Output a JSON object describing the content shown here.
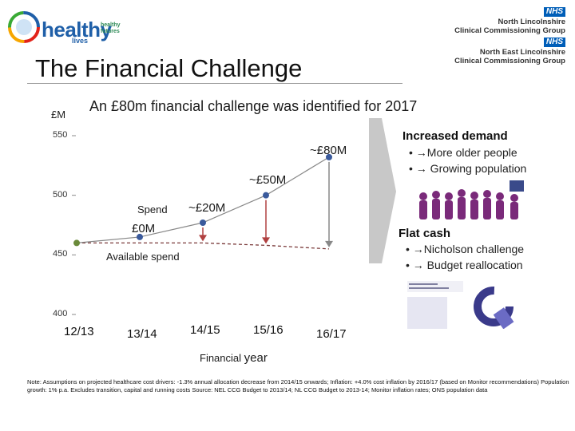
{
  "logo": {
    "name": "healthy",
    "tagline": [
      "healthy",
      "futures"
    ],
    "sub": "lives"
  },
  "nhs": [
    {
      "badge": "NHS",
      "org": [
        "North Lincolnshire",
        "Clinical Commissioning Group"
      ]
    },
    {
      "badge": "NHS",
      "org": [
        "North East Lincolnshire",
        "Clinical Commissioning Group"
      ]
    }
  ],
  "title": "The Financial Challenge",
  "subtitle": "An £80m financial challenge was identified for 2017",
  "chart_data": {
    "type": "line",
    "title": "An £80m financial challenge was identified for 2017",
    "ylabel": "£M",
    "xlabel": "Financial year",
    "ylim": [
      400,
      550
    ],
    "yticks": [
      400,
      450,
      500,
      550
    ],
    "categories": [
      "12/13",
      "13/14",
      "14/15",
      "15/16",
      "16/17"
    ],
    "series": [
      {
        "name": "Spend",
        "points": [
          [
            0,
            460
          ],
          [
            1,
            465
          ],
          [
            2,
            477
          ],
          [
            3,
            500
          ],
          [
            4,
            532
          ]
        ]
      },
      {
        "name": "Available spend",
        "points": [
          [
            0,
            460
          ],
          [
            1,
            460
          ],
          [
            2,
            460
          ],
          [
            3,
            458
          ],
          [
            4,
            455
          ]
        ]
      }
    ],
    "annotations": [
      "Spend",
      "£0M",
      "~£20M",
      "~£50M",
      "~£80M",
      "Available spend"
    ]
  },
  "xlabel": {
    "prefix": "Financial ",
    "suffix": "year"
  },
  "side": {
    "demand_title": "Increased demand",
    "demand_items": [
      "• →More older people",
      "• → Growing population"
    ],
    "cash_title": "Flat cash",
    "cash_items": [
      "• →Nicholson challenge",
      "• → Budget reallocation"
    ]
  },
  "note": "Note: Assumptions on projected healthcare cost drivers: -1.3% annual allocation decrease from 2014/15 onwards; Inflation: +4.0% cost inflation by 2016/17 (based on Monitor recommendations) Population growth: 1% p.a. Excludes transition, capital and running costs Source: NEL CCG Budget to 2013/14; NL CCG Budget to 2013-14; Monitor inflation rates; ONS population data",
  "colors": {
    "spend": "#3a5a9c",
    "available": "#7a3a3a",
    "marker": "#6a8a3a",
    "arrow": "#b04040",
    "nhs": "#005eb8"
  }
}
